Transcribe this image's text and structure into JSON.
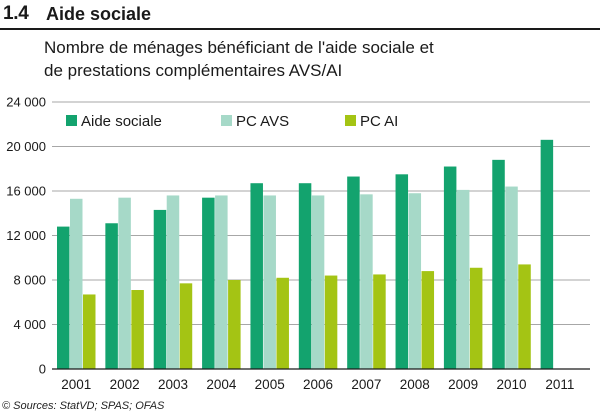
{
  "section": {
    "number": "1.4",
    "title": "Aide sociale"
  },
  "subtitle_lines": [
    "Nombre de ménages bénéficiant de l'aide sociale et",
    "de prestations complémentaires AVS/AI"
  ],
  "source": "© Sources: StatVD; SPAS; OFAS",
  "colors": {
    "aide_sociale": "#13a36e",
    "pc_avs": "#a6d9c8",
    "pc_ai": "#a4c414"
  },
  "chart_data": {
    "type": "bar",
    "categories": [
      "2001",
      "2002",
      "2003",
      "2004",
      "2005",
      "2006",
      "2007",
      "2008",
      "2009",
      "2010",
      "2011"
    ],
    "series": [
      {
        "name": "Aide sociale",
        "values": [
          12800,
          13100,
          14300,
          15400,
          16700,
          16700,
          17300,
          17500,
          18200,
          18800,
          20600
        ]
      },
      {
        "name": "PC AVS",
        "values": [
          15300,
          15400,
          15600,
          15600,
          15600,
          15600,
          15700,
          15800,
          16100,
          16400,
          null
        ]
      },
      {
        "name": "PC AI",
        "values": [
          6700,
          7100,
          7700,
          8000,
          8200,
          8400,
          8500,
          8800,
          9100,
          9400,
          null
        ]
      }
    ],
    "ylim": [
      0,
      24000
    ],
    "yticks": [
      0,
      4000,
      8000,
      12000,
      16000,
      20000,
      24000
    ],
    "ytick_labels": [
      "0",
      "4 000",
      "8 000",
      "12 000",
      "16 000",
      "20 000",
      "24 000"
    ],
    "xlabel": "",
    "ylabel": "",
    "grid": true,
    "legend_position": "top"
  }
}
